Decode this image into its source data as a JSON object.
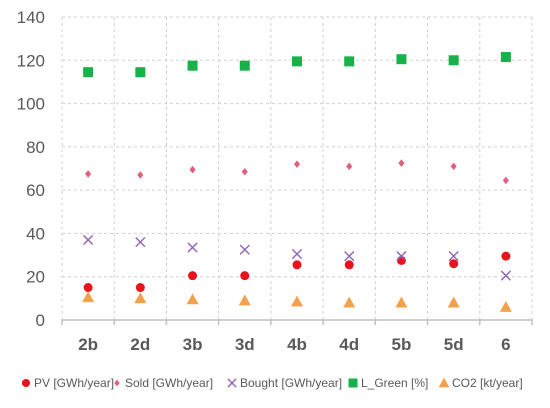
{
  "chart_data": {
    "type": "scatter",
    "title": "",
    "xlabel": "",
    "ylabel": "",
    "categories": [
      "2b",
      "2d",
      "3b",
      "3d",
      "4b",
      "4d",
      "5b",
      "5d",
      "6"
    ],
    "ylim": [
      0,
      140
    ],
    "yticks": [
      "0",
      "20",
      "40",
      "60",
      "80",
      "100",
      "120",
      "140"
    ],
    "grid": "dashed vertical and horizontal",
    "legend_position": "bottom",
    "series": [
      {
        "name": "PV [GWh/year]",
        "marker": "circle",
        "color": "#E8131B",
        "values": [
          15,
          15,
          20.5,
          20.5,
          25.5,
          25.5,
          27.5,
          26,
          29.5
        ]
      },
      {
        "name": "Sold [GWh/year]",
        "marker": "diamond",
        "color": "#E0607E",
        "values": [
          67.5,
          67,
          69.5,
          68.5,
          72,
          71,
          72.5,
          71,
          64.5
        ]
      },
      {
        "name": "Bought [GWh/year]",
        "marker": "x",
        "color": "#8E63B5",
        "values": [
          37,
          36,
          33.5,
          32.5,
          30.5,
          29.5,
          29.5,
          29.5,
          20.5
        ]
      },
      {
        "name": "L_Green [%]",
        "marker": "square",
        "color": "#17B34A",
        "values": [
          114.5,
          114.5,
          117.5,
          117.5,
          119.5,
          119.5,
          120.5,
          120,
          121.5
        ]
      },
      {
        "name": "CO2 [kt/year]",
        "marker": "triangle",
        "color": "#F5A04A",
        "values": [
          10.5,
          10,
          9.5,
          9,
          8.5,
          8,
          8,
          8,
          6
        ]
      }
    ]
  }
}
